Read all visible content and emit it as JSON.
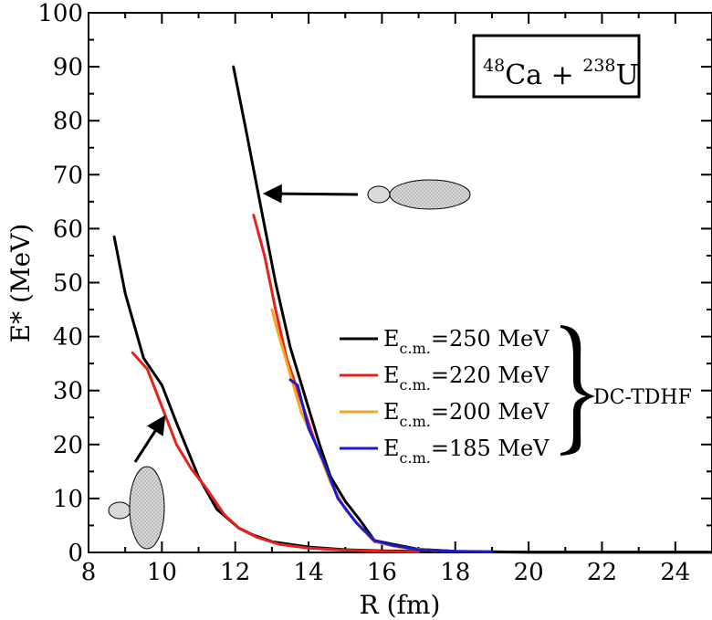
{
  "chart_data": {
    "type": "line",
    "xlabel": "R (fm)",
    "ylabel": "E* (MeV)",
    "xlim": [
      8,
      25
    ],
    "ylim": [
      0,
      100
    ],
    "x_ticks": [
      8,
      10,
      12,
      14,
      16,
      18,
      20,
      22,
      24
    ],
    "y_ticks": [
      0,
      10,
      20,
      30,
      40,
      50,
      60,
      70,
      80,
      90,
      100
    ],
    "system_label": {
      "a1": "48",
      "el1": "Ca",
      "plus": " + ",
      "a2": "238",
      "el2": "U"
    },
    "legend_group_label": "DC-TDHF",
    "legend_position": "right",
    "series": [
      {
        "name": "E_c.m.=250 MeV",
        "label_main": "E",
        "label_sub": "c.m.",
        "label_rest": "=250 MeV",
        "color": "#000000",
        "segments": [
          [
            [
              8.7,
              58.5
            ],
            [
              9.0,
              48
            ],
            [
              9.5,
              36
            ],
            [
              10.0,
              31
            ],
            [
              10.4,
              24
            ],
            [
              11.0,
              14
            ],
            [
              11.5,
              8
            ],
            [
              12.1,
              4.5
            ],
            [
              12.5,
              3.2
            ],
            [
              13.0,
              2
            ],
            [
              14.0,
              1
            ],
            [
              15.0,
              0.5
            ],
            [
              16.0,
              0.3
            ],
            [
              17.0,
              0.2
            ],
            [
              18.0,
              0.1
            ],
            [
              20.0,
              0.05
            ],
            [
              25.0,
              0.05
            ]
          ],
          [
            [
              11.95,
              90
            ],
            [
              12.3,
              78
            ],
            [
              12.7,
              64
            ],
            [
              13.1,
              50
            ],
            [
              13.5,
              38
            ],
            [
              13.9,
              29
            ],
            [
              14.3,
              20
            ],
            [
              14.6,
              14
            ],
            [
              15.0,
              9.5
            ],
            [
              15.4,
              6
            ],
            [
              15.8,
              2.2
            ],
            [
              16.3,
              1.5
            ],
            [
              17.0,
              0.6
            ],
            [
              18.0,
              0.2
            ],
            [
              20.0,
              0.05
            ],
            [
              25.0,
              0.03
            ]
          ]
        ]
      },
      {
        "name": "E_c.m.=220 MeV",
        "label_main": "E",
        "label_sub": "c.m.",
        "label_rest": "=220 MeV",
        "color": "#e8201a",
        "segments": [
          [
            [
              9.2,
              37
            ],
            [
              9.6,
              34
            ],
            [
              10.0,
              27
            ],
            [
              10.4,
              20
            ],
            [
              10.8,
              15.5
            ],
            [
              11.2,
              12
            ],
            [
              11.7,
              7
            ],
            [
              12.1,
              4.5
            ],
            [
              12.6,
              2.8
            ],
            [
              13.2,
              1.5
            ],
            [
              14.0,
              0.8
            ],
            [
              15.0,
              0.4
            ],
            [
              16.0,
              0.2
            ],
            [
              17.0,
              0.1
            ]
          ],
          [
            [
              12.5,
              62.5
            ],
            [
              12.8,
              55
            ],
            [
              13.1,
              45
            ],
            [
              13.4,
              36
            ],
            [
              13.8,
              28
            ],
            [
              14.2,
              20
            ],
            [
              14.6,
              13
            ],
            [
              15.0,
              8
            ],
            [
              15.4,
              4.8
            ],
            [
              15.8,
              2.0
            ],
            [
              16.3,
              1.2
            ],
            [
              17.0,
              0.5
            ],
            [
              18.0,
              0.2
            ]
          ]
        ]
      },
      {
        "name": "E_c.m.=200 MeV",
        "label_main": "E",
        "label_sub": "c.m.",
        "label_rest": "=200 MeV",
        "color": "#f5a623",
        "segments": [
          [
            [
              13.0,
              45
            ],
            [
              13.2,
              40
            ],
            [
              13.5,
              33
            ],
            [
              13.8,
              26
            ],
            [
              14.2,
              20
            ],
            [
              14.6,
              13
            ],
            [
              15.0,
              8
            ],
            [
              15.5,
              4
            ],
            [
              15.9,
              1.8
            ],
            [
              16.5,
              0.9
            ],
            [
              17.5,
              0.3
            ]
          ]
        ]
      },
      {
        "name": "E_c.m.=185 MeV",
        "label_main": "E",
        "label_sub": "c.m.",
        "label_rest": "=185 MeV",
        "color": "#1a1ad6",
        "segments": [
          [
            [
              13.5,
              32
            ],
            [
              13.7,
              31
            ],
            [
              14.0,
              23
            ],
            [
              14.4,
              17
            ],
            [
              14.8,
              10
            ],
            [
              15.3,
              5.5
            ],
            [
              15.8,
              2.2
            ],
            [
              16.3,
              1.3
            ],
            [
              17.0,
              0.5
            ],
            [
              18.0,
              0.2
            ],
            [
              19.0,
              0.1
            ]
          ]
        ]
      }
    ],
    "annotations": [
      {
        "type": "arrow",
        "from": [
          13.4,
          66
        ],
        "to": [
          12.6,
          66.2
        ],
        "shape": "two-touching-ellipses-horizontal"
      },
      {
        "type": "arrow",
        "from": [
          9.55,
          16.5
        ],
        "to": [
          10.05,
          25.5
        ],
        "shape": "two-touching-ellipses-vertical"
      }
    ]
  }
}
